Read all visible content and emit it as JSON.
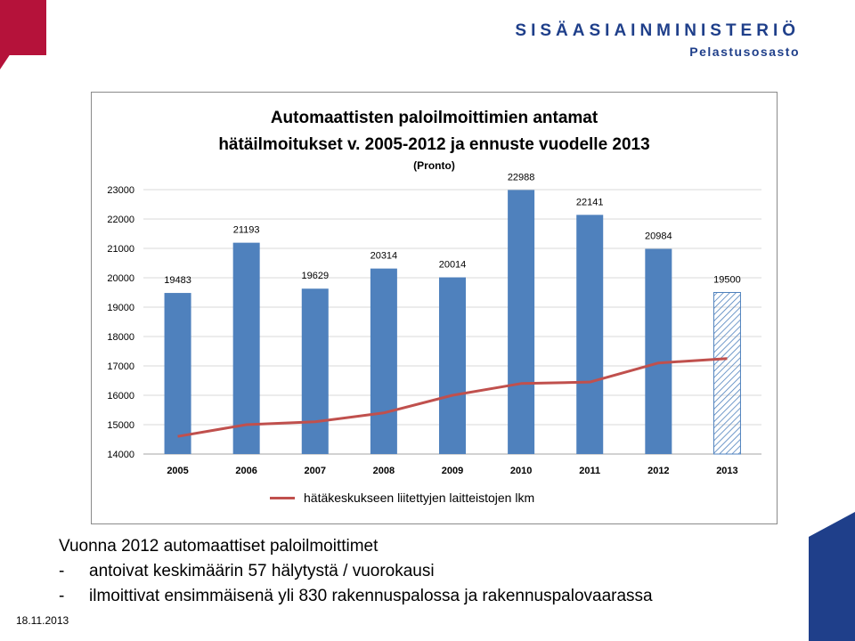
{
  "header": {
    "org_name": "SISÄASIAINMINISTERIÖ",
    "org_sub": "Pelastusosasto",
    "colors": {
      "accent_red": "#b5123a",
      "accent_blue": "#1f3f8a"
    }
  },
  "chart_data": {
    "type": "bar",
    "title_line1": "Automaattisten paloilmoittimien antamat",
    "title_line2": "hätäilmoitukset v. 2005-2012 ja ennuste vuodelle 2013",
    "subtitle": "(Pronto)",
    "categories": [
      "2005",
      "2006",
      "2007",
      "2008",
      "2009",
      "2010",
      "2011",
      "2012",
      "2013"
    ],
    "series": [
      {
        "type": "bar",
        "values": [
          19483,
          21193,
          19629,
          20314,
          20014,
          22988,
          22141,
          20984,
          19500
        ],
        "labels": [
          "19483",
          "21193",
          "19629",
          "20314",
          "20014",
          "22988",
          "22141",
          "20984",
          "19500"
        ],
        "color": "#4f81bd",
        "forecast_index": 8
      },
      {
        "type": "line",
        "name": "hätäkeskukseen liitettyjen laitteistojen lkm",
        "values": [
          14600,
          15000,
          15100,
          15400,
          16000,
          16400,
          16450,
          17100,
          17250
        ],
        "color": "#c0504d"
      }
    ],
    "yticks": [
      "14000",
      "15000",
      "16000",
      "17000",
      "18000",
      "19000",
      "20000",
      "21000",
      "22000",
      "23000"
    ],
    "ylim": [
      14000,
      23000
    ],
    "grid": true,
    "legend_position": "bottom"
  },
  "caption": {
    "line1": "Vuonna 2012 automaattiset paloilmoittimet",
    "line2_dash": "-",
    "line2": "antoivat keskimäärin 57 hälytystä / vuorokausi",
    "line3_dash": "-",
    "line3": "ilmoittivat ensimmäisenä yli 830 rakennuspalossa ja rakennuspalovaarassa"
  },
  "footer": {
    "date": "18.11.2013"
  }
}
